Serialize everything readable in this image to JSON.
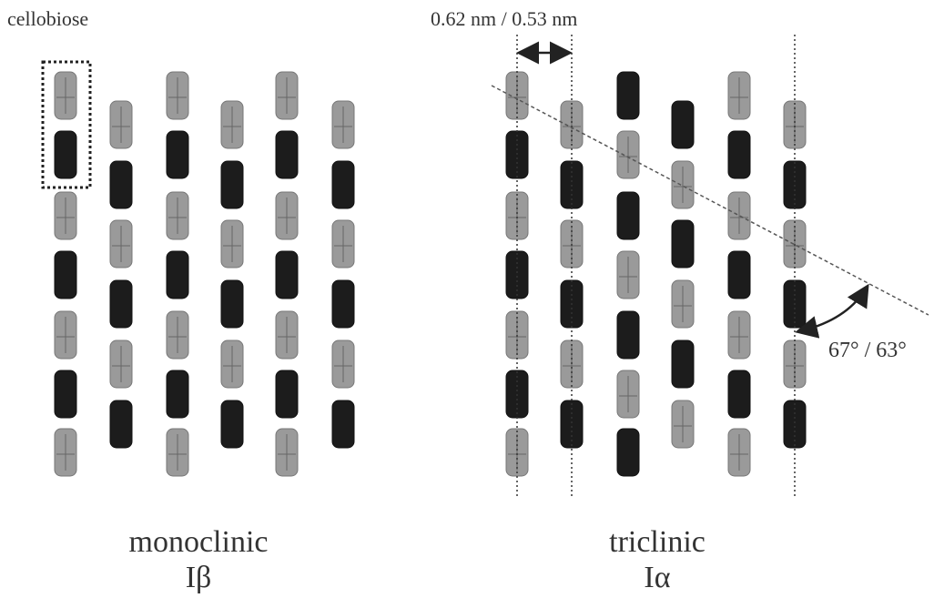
{
  "labels": {
    "cellobiose": "cellobiose",
    "spacing": "0.62 nm / 0.53 nm",
    "angle": "67° / 63°"
  },
  "left": {
    "name": "monoclinic",
    "symbol": "Iβ"
  },
  "right": {
    "name": "triclinic",
    "symbol": "Iα"
  }
}
